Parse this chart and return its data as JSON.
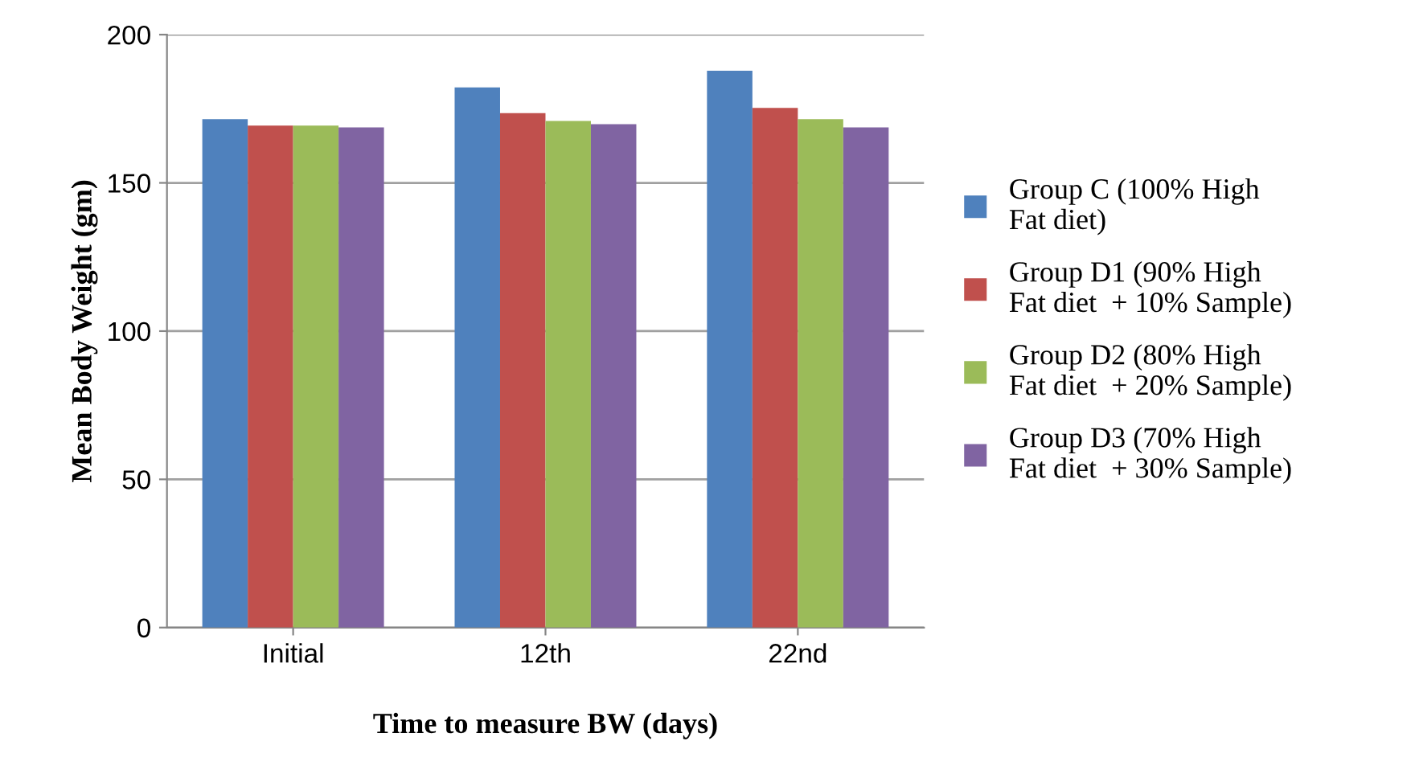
{
  "chart_data": {
    "type": "bar",
    "xlabel": "Time to measure BW (days)",
    "ylabel": "Mean Body Weight (gm)",
    "categories": [
      "Initial",
      "12th",
      "22nd"
    ],
    "series": [
      {
        "name": "Group C (100% High\nFat diet)",
        "color": "#4f81bd",
        "values": [
          171.5,
          182.2,
          187.8
        ]
      },
      {
        "name": "Group D1 (90% High\nFat diet  + 10% Sample)",
        "color": "#c0504d",
        "values": [
          169.3,
          173.5,
          175.3
        ]
      },
      {
        "name": "Group D2 (80% High\nFat diet  + 20% Sample)",
        "color": "#9bbb59",
        "values": [
          169.3,
          170.9,
          171.5
        ]
      },
      {
        "name": "Group D3 (70% High\nFat diet  + 30% Sample)",
        "color": "#8064a2",
        "values": [
          168.7,
          169.8,
          168.7
        ]
      }
    ],
    "ylim": [
      0,
      200
    ],
    "yticks": [
      0,
      50,
      100,
      150,
      200
    ],
    "grid": "y",
    "legend": "right"
  }
}
